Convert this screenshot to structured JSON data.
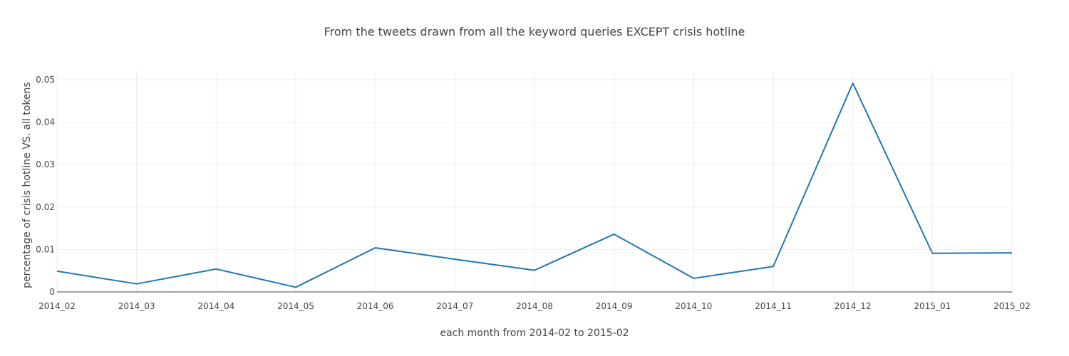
{
  "chart_data": {
    "type": "line",
    "title": "From the tweets drawn from all the keyword queries EXCEPT crisis hotline",
    "xlabel": "each month from 2014-02 to 2015-02",
    "ylabel": "percentage of crisis hotline VS. all tokens",
    "categories": [
      "2014_02",
      "2014_03",
      "2014_04",
      "2014_05",
      "2014_06",
      "2014_07",
      "2014_08",
      "2014_09",
      "2014_10",
      "2014_11",
      "2014_12",
      "2015_01",
      "2015_02"
    ],
    "series": [
      {
        "color": "#1f77b4",
        "values": [
          0.0049,
          0.0019,
          0.0054,
          0.0011,
          0.0104,
          0.0077,
          0.0051,
          0.0136,
          0.0032,
          0.006,
          0.0492,
          0.0091,
          0.0092
        ]
      }
    ],
    "ylim": [
      0,
      0.05
    ],
    "yticks": [
      {
        "value": 0,
        "label": "0"
      },
      {
        "value": 0.01,
        "label": "0.01"
      },
      {
        "value": 0.02,
        "label": "0.02"
      },
      {
        "value": 0.03,
        "label": "0.03"
      },
      {
        "value": 0.04,
        "label": "0.04"
      },
      {
        "value": 0.05,
        "label": "0.05"
      }
    ],
    "grid": true,
    "legend": "none"
  }
}
